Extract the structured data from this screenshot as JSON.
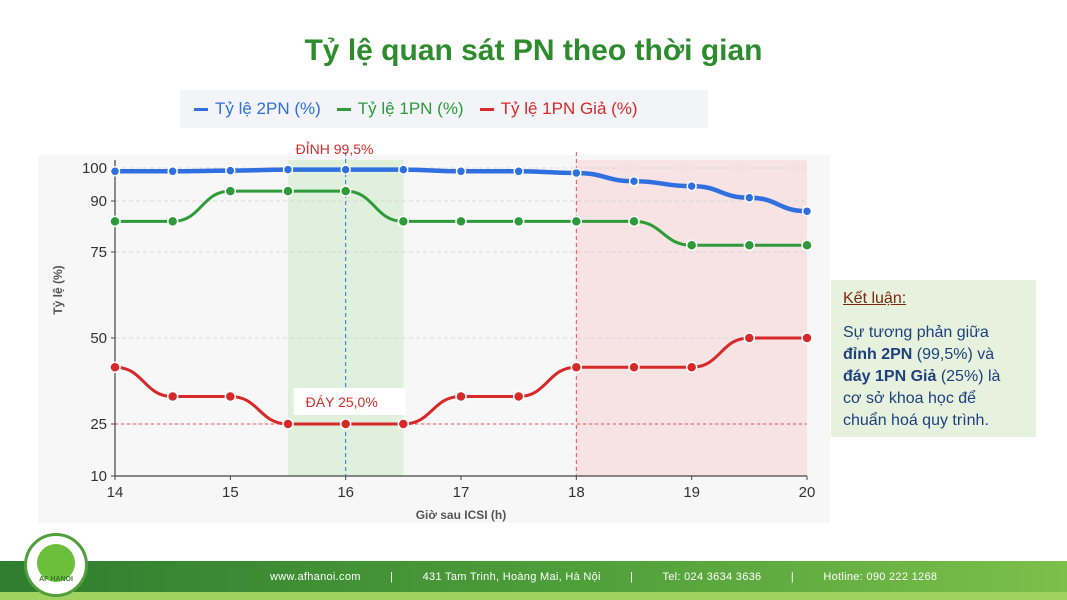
{
  "chart_data": {
    "type": "line",
    "title": "Tỷ lệ quan sát PN theo thời gian",
    "xlabel": "Giờ sau ICSI (h)",
    "ylabel": "Tỷ lệ (%)",
    "x": [
      14,
      14.5,
      15,
      15.5,
      16,
      16.5,
      17,
      17.5,
      18,
      18.5,
      19,
      19.5,
      20
    ],
    "xlim": [
      14,
      20
    ],
    "ylim": [
      10,
      100
    ],
    "x_ticks": [
      "14",
      "15",
      "16",
      "17",
      "18",
      "19",
      "20"
    ],
    "x_tick_values": [
      14,
      15,
      16,
      17,
      18,
      19,
      20
    ],
    "y_ticks": [
      "100",
      "90",
      "75",
      "50",
      "25",
      "10"
    ],
    "y_tick_values": [
      100,
      90,
      75,
      50,
      25,
      10
    ],
    "grid": true,
    "legend_position": "top",
    "series": [
      {
        "name": "Tỷ lệ 2PN (%)",
        "color": "#2f6fe0",
        "values": [
          99,
          99,
          99.2,
          99.5,
          99.5,
          99.5,
          99,
          99,
          98.5,
          96,
          94.5,
          91,
          87
        ]
      },
      {
        "name": "Tỷ lệ 1PN (%)",
        "color": "#2e9a3a",
        "values": [
          84,
          84,
          93,
          93,
          93,
          84,
          84,
          84,
          84,
          84,
          77,
          77,
          77
        ]
      },
      {
        "name": "Tỷ lệ 1PN Giả (%)",
        "color": "#d62a2a",
        "values": [
          41.5,
          33,
          33,
          25,
          25,
          25,
          33,
          33,
          41.5,
          41.5,
          41.5,
          50,
          50
        ]
      }
    ],
    "bands": [
      {
        "from": 15.5,
        "to": 16.5,
        "color": "#dff0dc"
      },
      {
        "from": 18,
        "to": 20,
        "color": "#f7e2e4"
      }
    ],
    "annotations": [
      {
        "text": "ĐỈNH 99,5%",
        "x": 16,
        "y": 99.5,
        "color": "#d62a2a"
      },
      {
        "text": "ĐÁY 25,0%",
        "x": 16,
        "y": 25,
        "color": "#d62a2a"
      }
    ],
    "reference_lines": [
      {
        "axis": "x",
        "value": 16,
        "color": "#2f6fe0"
      },
      {
        "axis": "x",
        "value": 18,
        "color": "#e05050"
      },
      {
        "axis": "y",
        "value": 25,
        "color": "#e05050"
      }
    ]
  },
  "conclusion": {
    "heading": "Kết luận:",
    "line1": "Sự tương phản giữa",
    "bold1": "đỉnh 2PN",
    "line2": " (99,5%) và",
    "bold2": "đáy 1PN Giả",
    "line3": " (25%) là",
    "line4": "cơ sở khoa học để",
    "line5": "chuẩn hoá quy trình."
  },
  "footer": {
    "website": "www.afhanoi.com",
    "address": "431 Tam Trinh, Hoàng Mai, Hà Nội",
    "tel": "Tel: 024 3634 3636",
    "hotline": "Hotline: 090 222 1268",
    "sep": "|",
    "logo_text": "AF HANOI"
  }
}
